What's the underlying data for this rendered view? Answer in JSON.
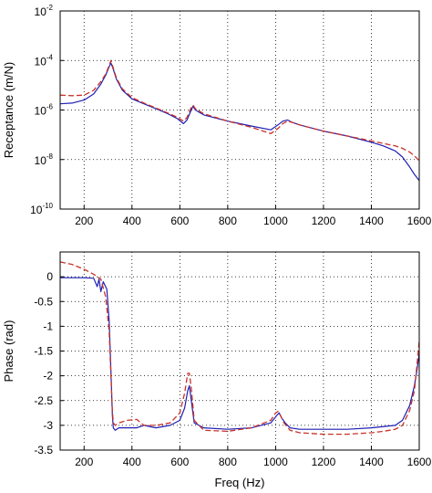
{
  "chart_data": [
    {
      "type": "line",
      "title": "",
      "xlabel": "",
      "ylabel": "Receptance (m/N)",
      "xlim": [
        100,
        1600
      ],
      "ylim_log10": [
        -10,
        -2
      ],
      "yscale": "log",
      "grid": true,
      "xticks": [
        "200",
        "400",
        "600",
        "800",
        "1000",
        "1200",
        "1400",
        "1600"
      ],
      "yticks": [
        {
          "base": "10",
          "exp": "-2",
          "value": -2
        },
        {
          "base": "10",
          "exp": "-4",
          "value": -4
        },
        {
          "base": "10",
          "exp": "-6",
          "value": -6
        },
        {
          "base": "10",
          "exp": "-8",
          "value": -8
        },
        {
          "base": "10",
          "exp": "-10",
          "value": -10
        }
      ],
      "series": [
        {
          "style": "solid",
          "color": "#1f1fb4",
          "x": [
            100,
            150,
            200,
            240,
            270,
            290,
            305,
            312,
            320,
            335,
            360,
            400,
            450,
            500,
            550,
            590,
            615,
            630,
            645,
            655,
            665,
            700,
            800,
            900,
            980,
            1010,
            1030,
            1050,
            1070,
            1100,
            1200,
            1300,
            1400,
            1450,
            1500,
            1530,
            1560,
            1580,
            1600
          ],
          "y_log10": [
            -5.75,
            -5.72,
            -5.6,
            -5.35,
            -4.95,
            -4.6,
            -4.25,
            -4.1,
            -4.3,
            -4.75,
            -5.2,
            -5.55,
            -5.75,
            -5.95,
            -6.15,
            -6.35,
            -6.55,
            -6.4,
            -6.05,
            -5.85,
            -6.0,
            -6.2,
            -6.45,
            -6.65,
            -6.8,
            -6.6,
            -6.45,
            -6.4,
            -6.5,
            -6.6,
            -6.85,
            -7.05,
            -7.3,
            -7.45,
            -7.65,
            -7.9,
            -8.3,
            -8.6,
            -8.85
          ]
        },
        {
          "style": "dashed",
          "color": "#c83228",
          "x": [
            100,
            150,
            200,
            240,
            270,
            290,
            305,
            312,
            320,
            335,
            360,
            400,
            450,
            500,
            550,
            590,
            615,
            630,
            645,
            655,
            665,
            700,
            800,
            900,
            980,
            1010,
            1030,
            1050,
            1070,
            1100,
            1200,
            1300,
            1400,
            1450,
            1500,
            1530,
            1560,
            1580,
            1600
          ],
          "y_log10": [
            -5.4,
            -5.42,
            -5.4,
            -5.2,
            -4.85,
            -4.55,
            -4.2,
            -4.0,
            -4.25,
            -4.7,
            -5.15,
            -5.5,
            -5.72,
            -5.92,
            -6.12,
            -6.3,
            -6.45,
            -6.3,
            -5.95,
            -5.8,
            -5.95,
            -6.15,
            -6.45,
            -6.7,
            -6.95,
            -6.75,
            -6.55,
            -6.45,
            -6.5,
            -6.6,
            -6.85,
            -7.05,
            -7.25,
            -7.35,
            -7.45,
            -7.55,
            -7.7,
            -7.85,
            -8.05
          ]
        }
      ]
    },
    {
      "type": "line",
      "title": "",
      "xlabel": "Freq (Hz)",
      "ylabel": "Phase (rad)",
      "xlim": [
        100,
        1600
      ],
      "ylim": [
        -3.5,
        0.5
      ],
      "grid": true,
      "xticks": [
        "200",
        "400",
        "600",
        "800",
        "1000",
        "1200",
        "1400",
        "1600"
      ],
      "yticks": [
        "0",
        "-0.5",
        "-1",
        "-1.5",
        "-2",
        "-2.5",
        "-3",
        "-3.5"
      ],
      "series": [
        {
          "style": "solid",
          "color": "#1f1fb4",
          "x": [
            100,
            150,
            200,
            240,
            255,
            262,
            270,
            280,
            295,
            305,
            312,
            318,
            322,
            330,
            345,
            380,
            420,
            450,
            500,
            560,
            600,
            620,
            633,
            640,
            648,
            660,
            700,
            800,
            900,
            980,
            1005,
            1015,
            1025,
            1040,
            1060,
            1100,
            1200,
            1300,
            1400,
            1500,
            1530,
            1560,
            1580,
            1590,
            1600
          ],
          "y": [
            -0.02,
            -0.02,
            -0.02,
            -0.03,
            -0.2,
            -0.05,
            -0.3,
            -0.1,
            -0.25,
            -0.9,
            -1.9,
            -2.8,
            -3.05,
            -3.1,
            -3.05,
            -3.05,
            -3.05,
            -3.0,
            -3.05,
            -3.0,
            -2.9,
            -2.65,
            -2.3,
            -2.2,
            -2.5,
            -2.95,
            -3.05,
            -3.08,
            -3.05,
            -2.95,
            -2.8,
            -2.75,
            -2.85,
            -2.95,
            -3.05,
            -3.08,
            -3.08,
            -3.08,
            -3.05,
            -3.0,
            -2.9,
            -2.6,
            -2.2,
            -1.9,
            -1.55
          ]
        },
        {
          "style": "dashed",
          "color": "#c83228",
          "x": [
            100,
            150,
            200,
            240,
            270,
            290,
            305,
            312,
            318,
            322,
            330,
            345,
            380,
            420,
            450,
            500,
            560,
            600,
            620,
            633,
            640,
            648,
            660,
            700,
            800,
            900,
            980,
            1000,
            1010,
            1020,
            1035,
            1060,
            1100,
            1200,
            1300,
            1400,
            1450,
            1500,
            1530,
            1560,
            1580,
            1590,
            1600
          ],
          "y": [
            0.3,
            0.25,
            0.15,
            0.05,
            -0.05,
            -0.4,
            -1.1,
            -2.0,
            -2.7,
            -2.95,
            -3.0,
            -2.95,
            -2.9,
            -2.88,
            -3.0,
            -3.0,
            -2.95,
            -2.75,
            -2.35,
            -1.95,
            -1.95,
            -2.25,
            -2.9,
            -3.1,
            -3.12,
            -3.05,
            -2.9,
            -2.75,
            -2.72,
            -2.8,
            -2.95,
            -3.1,
            -3.15,
            -3.18,
            -3.18,
            -3.15,
            -3.12,
            -3.08,
            -3.0,
            -2.7,
            -2.3,
            -1.8,
            -1.3
          ]
        }
      ]
    }
  ]
}
